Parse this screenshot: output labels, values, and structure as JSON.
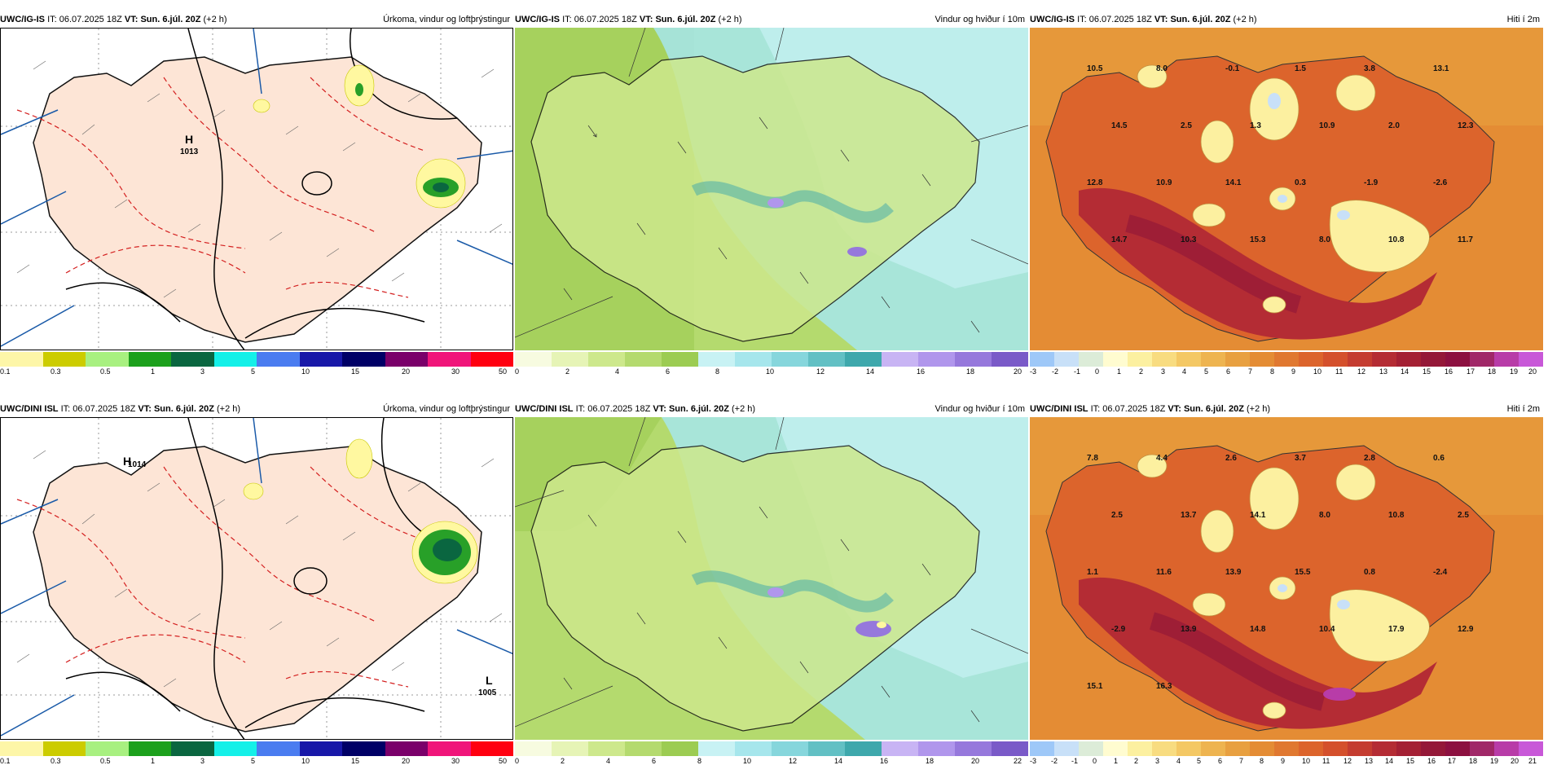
{
  "rows": [
    {
      "model": "UWC/IG-IS",
      "it_label": "IT:",
      "it_value": "06.07.2025 18Z",
      "vt_label": "VT:",
      "vt_value": "Sun. 6.júl. 20Z",
      "lead": "(+2 h)",
      "pressure_markers": [
        {
          "letter": "H",
          "value": "1013"
        }
      ],
      "temp_labels": [
        "10.5",
        "8.0",
        "-0.1",
        "1.5",
        "3.8",
        "13.1",
        "14.5",
        "2.5",
        "1.3",
        "10.9",
        "2.0",
        "12.3",
        "12.8",
        "10.9",
        "14.1",
        "0.3",
        "-1.9",
        "-2.6",
        "14.7",
        "10.3",
        "15.3",
        "8.0",
        "10.8",
        "11.7"
      ]
    },
    {
      "model": "UWC/DINI ISL",
      "it_label": "IT:",
      "it_value": "06.07.2025 18Z",
      "vt_label": "VT:",
      "vt_value": "Sun. 6.júl. 20Z",
      "lead": "(+2 h)",
      "pressure_markers": [
        {
          "letter": "H",
          "value": "1014"
        },
        {
          "letter": "L",
          "value": "1005"
        }
      ],
      "temp_labels": [
        "7.8",
        "4.4",
        "2.6",
        "3.7",
        "2.8",
        "0.6",
        "2.5",
        "13.7",
        "14.1",
        "8.0",
        "10.8",
        "2.5",
        "1.1",
        "11.6",
        "13.9",
        "15.5",
        "0.8",
        "-2.4",
        "-2.9",
        "13.9",
        "14.8",
        "10.4",
        "17.9",
        "12.9",
        "15.1",
        "16.3"
      ]
    }
  ],
  "panels": [
    {
      "title": "Úrkoma, vindur og loftþrýstingur",
      "colorbar": {
        "colors": [
          "#fdf6a8",
          "#cccc00",
          "#a8f080",
          "#1ca01c",
          "#0a6640",
          "#14f0e8",
          "#4a7cf0",
          "#1818a8",
          "#000066",
          "#7a006a",
          "#f0157a",
          "#ff0010"
        ],
        "ticks": [
          "0.1",
          "0.3",
          "0.5",
          "1",
          "3",
          "5",
          "10",
          "15",
          "20",
          "30",
          "50"
        ]
      }
    },
    {
      "title": "Vindur og hviður í 10m",
      "colorbar": {
        "colors": [
          "#f7fbe0",
          "#e6f4b6",
          "#cde88c",
          "#b4da6e",
          "#9ccc52",
          "#c8f2f4",
          "#a6e6ec",
          "#86d6dc",
          "#62c0c4",
          "#3ea8ac",
          "#c8b4f4",
          "#b096ec",
          "#9678dc",
          "#7a5ac8"
        ],
        "ticks_top": [
          "0",
          "2",
          "4",
          "6",
          "8",
          "10",
          "12",
          "14",
          "16",
          "18",
          "20"
        ],
        "ticks_bottom": [
          "0",
          "2",
          "4",
          "6",
          "8",
          "10",
          "12",
          "14",
          "16",
          "18",
          "20",
          "22"
        ]
      }
    },
    {
      "title": "Hiti í 2m",
      "colorbar": {
        "colors": [
          "#9ec8f8",
          "#c8e0f8",
          "#dcecd8",
          "#fffcd0",
          "#fcf0a0",
          "#f8dc80",
          "#f4c864",
          "#eeb450",
          "#e8a040",
          "#e48c34",
          "#e07830",
          "#dc642c",
          "#d4502c",
          "#c43c30",
          "#b42c34",
          "#a42034",
          "#941838",
          "#8c1040",
          "#a02868",
          "#b83ca8",
          "#c858d8"
        ],
        "ticks_top": [
          "-3",
          "-2",
          "-1",
          "0",
          "1",
          "2",
          "3",
          "4",
          "5",
          "6",
          "7",
          "8",
          "9",
          "10",
          "11",
          "12",
          "13",
          "14",
          "15",
          "16",
          "17",
          "18",
          "19",
          "20"
        ],
        "ticks_bottom": [
          "-3",
          "-2",
          "-1",
          "0",
          "1",
          "2",
          "3",
          "4",
          "5",
          "6",
          "7",
          "8",
          "9",
          "10",
          "11",
          "12",
          "13",
          "14",
          "15",
          "16",
          "17",
          "18",
          "19",
          "20",
          "21"
        ]
      }
    }
  ]
}
